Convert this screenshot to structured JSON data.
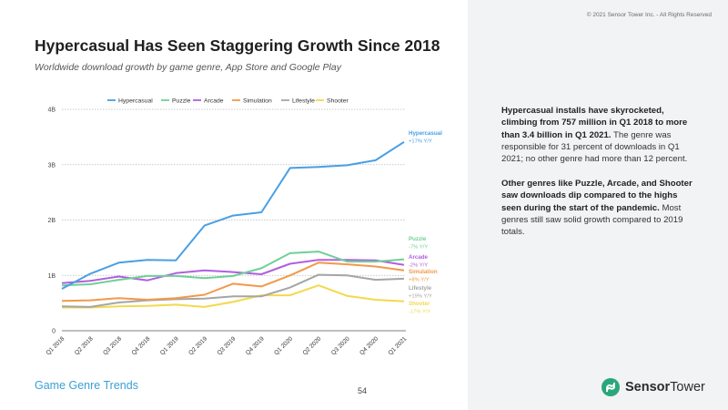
{
  "copyright": "© 2021 Sensor Tower Inc. - All Rights Reserved",
  "title": "Hypercasual Has Seen Staggering Growth Since 2018",
  "subtitle": "Worldwide download growth by game genre, App Store and Google Play",
  "insights": {
    "p1_bold": "Hypercasual installs have skyrocketed, climbing from 757 million in Q1 2018 to more than 3.4 billion in Q1 2021.",
    "p1_rest": " The genre was responsible for 31 percent of downloads in Q1 2021; no other genre had more than 12 percent.",
    "p2_bold": "Other genres like Puzzle, Arcade, and Shooter saw downloads dip compared to the highs seen during the start of the pandemic.",
    "p2_rest": " Most genres still saw solid growth compared to 2019 totals."
  },
  "footer": {
    "section": "Game Genre Trends",
    "page": "54",
    "logo_brand": "Sensor",
    "logo_brand2": "Tower"
  },
  "chart_data": {
    "type": "line",
    "categories": [
      "Q1 2018",
      "Q2 2018",
      "Q3 2018",
      "Q4 2018",
      "Q1 2019",
      "Q2 2019",
      "Q3 2019",
      "Q4 2019",
      "Q1 2020",
      "Q2 2020",
      "Q3 2020",
      "Q4 2020",
      "Q1 2021"
    ],
    "y_ticks": [
      "0",
      "1B",
      "2B",
      "3B",
      "4B"
    ],
    "ylim": [
      0,
      4
    ],
    "grid": true,
    "legend_position": "top",
    "series": [
      {
        "name": "Hypercasual",
        "color": "#4a9fe3",
        "end_label": "+17% Y/Y",
        "values": [
          0.757,
          1.03,
          1.23,
          1.28,
          1.27,
          1.9,
          2.08,
          2.14,
          2.94,
          2.96,
          2.99,
          3.08,
          3.41
        ]
      },
      {
        "name": "Puzzle",
        "color": "#6fcf97",
        "end_label": "-7% Y/Y",
        "values": [
          0.82,
          0.84,
          0.92,
          0.99,
          0.99,
          0.95,
          0.99,
          1.13,
          1.4,
          1.43,
          1.25,
          1.25,
          1.29
        ]
      },
      {
        "name": "Arcade",
        "color": "#b15fe0",
        "end_label": "-2% Y/Y",
        "values": [
          0.86,
          0.9,
          0.98,
          0.91,
          1.04,
          1.09,
          1.06,
          1.02,
          1.21,
          1.28,
          1.28,
          1.27,
          1.19
        ]
      },
      {
        "name": "Simulation",
        "color": "#f2994a",
        "end_label": "+8% Y/Y",
        "values": [
          0.54,
          0.55,
          0.59,
          0.56,
          0.59,
          0.65,
          0.85,
          0.8,
          1.0,
          1.23,
          1.2,
          1.16,
          1.09
        ]
      },
      {
        "name": "Lifestyle",
        "color": "#a5a5a5",
        "end_label": "+19% Y/Y",
        "values": [
          0.44,
          0.43,
          0.51,
          0.55,
          0.57,
          0.58,
          0.62,
          0.62,
          0.78,
          1.01,
          1.0,
          0.92,
          0.94
        ]
      },
      {
        "name": "Shooter",
        "color": "#f2d94e",
        "end_label": "-17% Y/Y",
        "values": [
          0.42,
          0.42,
          0.44,
          0.45,
          0.47,
          0.43,
          0.52,
          0.64,
          0.64,
          0.82,
          0.63,
          0.56,
          0.53
        ]
      }
    ]
  }
}
